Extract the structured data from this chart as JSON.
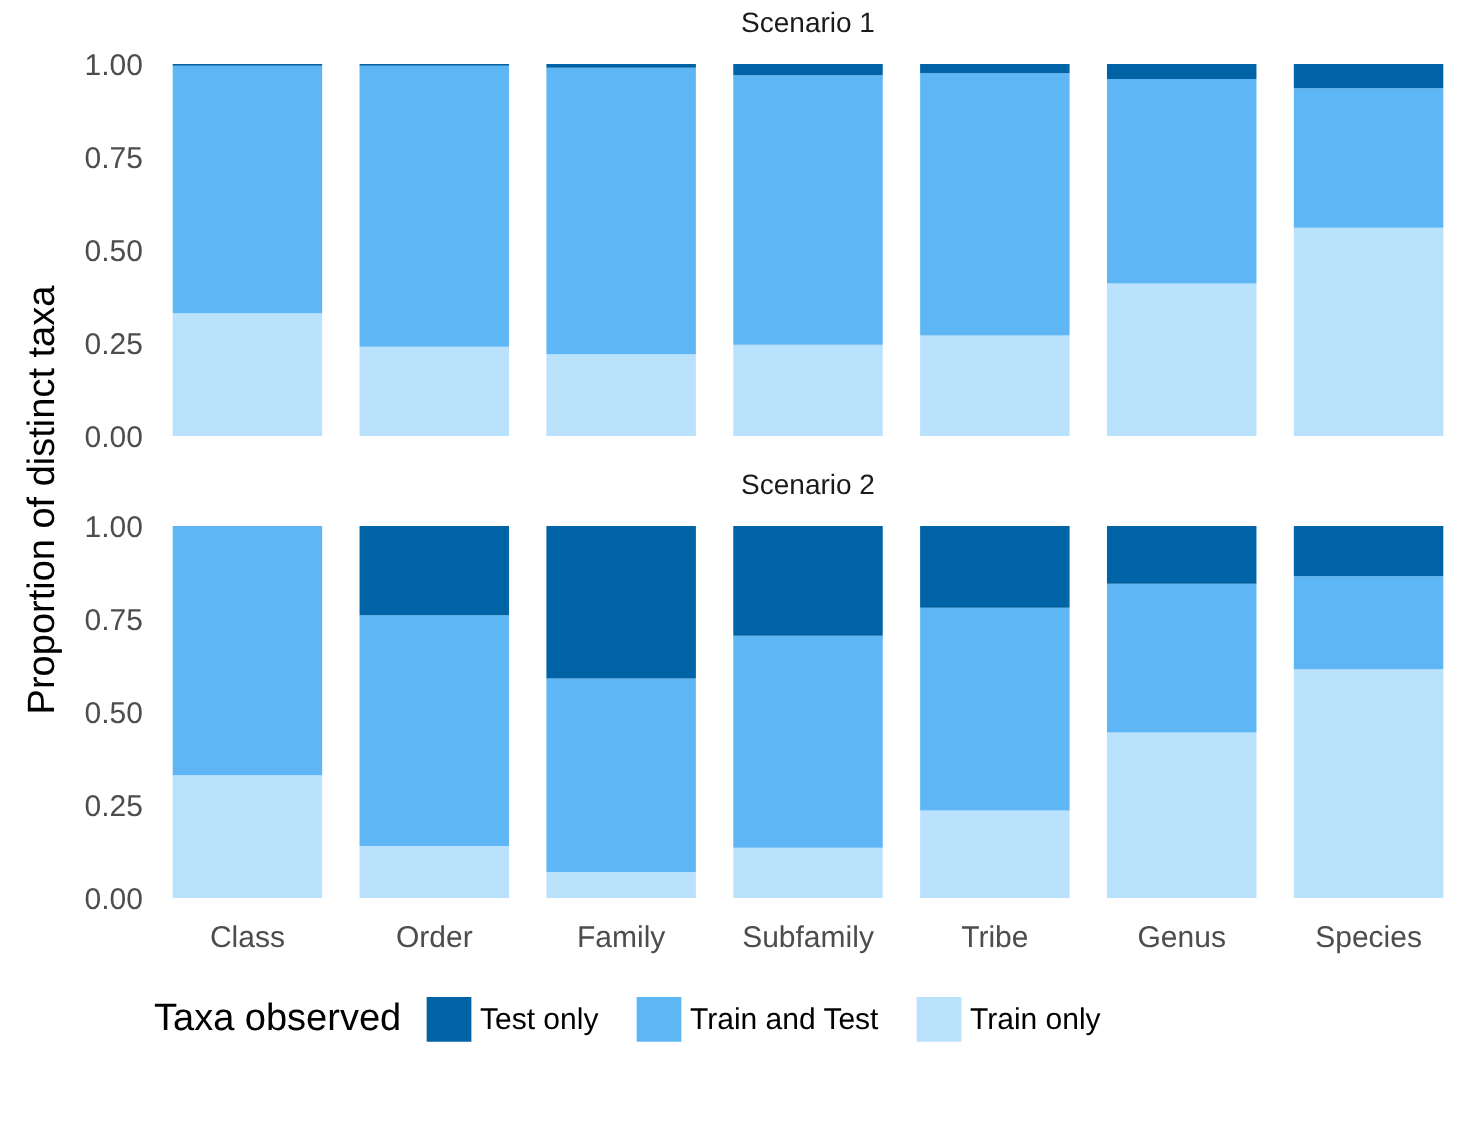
{
  "chart_data": [
    {
      "type": "bar",
      "title": "Scenario 1",
      "ylabel": "Proportion of distinct taxa",
      "stacked": true,
      "legend": "bottom",
      "tick_labels": "y",
      "categories": [
        "Class",
        "Order",
        "Family",
        "Subfamily",
        "Tribe",
        "Genus",
        "Species"
      ],
      "ylim": [
        0,
        1
      ],
      "yticks": [
        {
          "value": 0,
          "label": "0.00"
        },
        {
          "value": 0.25,
          "label": "0.25"
        },
        {
          "value": 0.5,
          "label": "0.50"
        },
        {
          "value": 0.75,
          "label": "0.75"
        },
        {
          "value": 1,
          "label": "1.00"
        }
      ],
      "series": [
        {
          "name": "Train only",
          "color": "#bbe2fd",
          "values": [
            0.33,
            0.24,
            0.22,
            0.245,
            0.27,
            0.41,
            0.56
          ]
        },
        {
          "name": "Train and Test",
          "color": "#5eb7f4",
          "values": [
            0.665,
            0.755,
            0.77,
            0.725,
            0.705,
            0.55,
            0.375
          ]
        },
        {
          "name": "Test only",
          "color": "#0063a6",
          "values": [
            0.005,
            0.005,
            0.01,
            0.03,
            0.025,
            0.04,
            0.065
          ]
        }
      ]
    },
    {
      "type": "bar",
      "title": "Scenario 2",
      "legend_title": "Taxa observed",
      "stacked": true,
      "legend": "bottom",
      "categories": [
        "Class",
        "Order",
        "Family",
        "Subfamily",
        "Tribe",
        "Genus",
        "Species"
      ],
      "ylim": [
        0,
        1
      ],
      "yticks": [
        {
          "value": 0,
          "label": "0.00"
        },
        {
          "value": 0.25,
          "label": "0.25"
        },
        {
          "value": 0.5,
          "label": "0.50"
        },
        {
          "value": 0.75,
          "label": "0.75"
        },
        {
          "value": 1,
          "label": "1.00"
        }
      ],
      "series": [
        {
          "name": "Train only",
          "color": "#bbe2fd",
          "values": [
            0.33,
            0.14,
            0.07,
            0.135,
            0.235,
            0.445,
            0.615
          ]
        },
        {
          "name": "Train and Test",
          "color": "#5eb7f4",
          "values": [
            0.67,
            0.62,
            0.52,
            0.57,
            0.545,
            0.4,
            0.25
          ]
        },
        {
          "name": "Test only",
          "color": "#0063a6",
          "values": [
            0,
            0.24,
            0.41,
            0.295,
            0.22,
            0.155,
            0.135
          ]
        }
      ]
    }
  ]
}
